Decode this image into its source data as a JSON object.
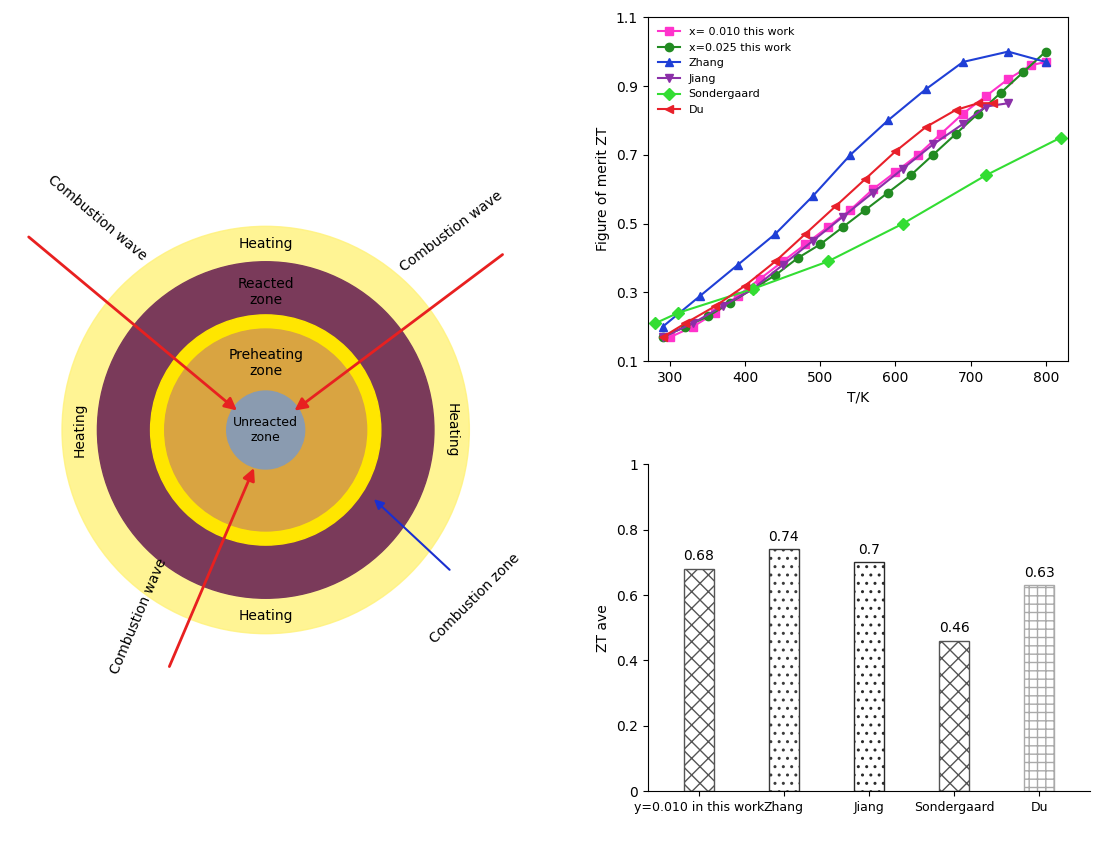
{
  "diagram": {
    "zones": [
      "Reacted zone",
      "Preheating zone",
      "Unreacted zone"
    ],
    "heating": [
      "Heating",
      "Heating",
      "Heating",
      "Heating"
    ],
    "combustion_wave": [
      "Combustion wave",
      "Combustion wave",
      "Combustion wave"
    ],
    "combustion_zone": "Combustion zone"
  },
  "chart_data": [
    {
      "type": "line",
      "x_label": "T/K",
      "y_label": "Figure of merit ZT",
      "xlim": [
        270,
        830
      ],
      "xticks": [
        300,
        400,
        500,
        600,
        700,
        800
      ],
      "ylim": [
        0.1,
        1.1
      ],
      "yticks": [
        0.1,
        0.3,
        0.5,
        0.7,
        0.9,
        1.1
      ],
      "legend": "upper left",
      "series": [
        {
          "name": "x= 0.010 this work",
          "color": "#ff33cc",
          "marker": "s",
          "x": [
            300,
            330,
            360,
            390,
            420,
            450,
            480,
            510,
            540,
            570,
            600,
            630,
            660,
            690,
            720,
            750,
            780,
            800
          ],
          "values": [
            0.17,
            0.2,
            0.24,
            0.29,
            0.34,
            0.39,
            0.44,
            0.49,
            0.54,
            0.6,
            0.65,
            0.7,
            0.76,
            0.82,
            0.87,
            0.92,
            0.96,
            0.97
          ]
        },
        {
          "name": "x=0.025 this work",
          "color": "#228b22",
          "marker": "o",
          "x": [
            290,
            320,
            350,
            380,
            410,
            440,
            470,
            500,
            530,
            560,
            590,
            620,
            650,
            680,
            710,
            740,
            770,
            800
          ],
          "values": [
            0.17,
            0.2,
            0.23,
            0.27,
            0.31,
            0.35,
            0.4,
            0.44,
            0.49,
            0.54,
            0.59,
            0.64,
            0.7,
            0.76,
            0.82,
            0.88,
            0.94,
            1.0
          ]
        },
        {
          "name": "Zhang",
          "color": "#1f3fd6",
          "marker": "^",
          "x": [
            290,
            340,
            390,
            440,
            490,
            540,
            590,
            640,
            690,
            750,
            800
          ],
          "values": [
            0.2,
            0.29,
            0.38,
            0.47,
            0.58,
            0.7,
            0.8,
            0.89,
            0.97,
            1.0,
            0.97
          ]
        },
        {
          "name": "Jiang",
          "color": "#8b2fa8",
          "marker": "v",
          "x": [
            290,
            330,
            370,
            410,
            450,
            490,
            530,
            570,
            610,
            650,
            690,
            720,
            750
          ],
          "values": [
            0.17,
            0.21,
            0.26,
            0.31,
            0.38,
            0.45,
            0.52,
            0.59,
            0.66,
            0.73,
            0.79,
            0.84,
            0.85
          ]
        },
        {
          "name": "Sondergaard",
          "color": "#33dd33",
          "marker": "D",
          "x": [
            280,
            310,
            410,
            510,
            610,
            720,
            820
          ],
          "values": [
            0.21,
            0.24,
            0.31,
            0.39,
            0.5,
            0.64,
            0.75
          ]
        },
        {
          "name": "Du",
          "color": "#e8202a",
          "marker": "<",
          "x": [
            290,
            320,
            360,
            400,
            440,
            480,
            520,
            560,
            600,
            640,
            680,
            710,
            730
          ],
          "values": [
            0.17,
            0.21,
            0.26,
            0.32,
            0.39,
            0.47,
            0.55,
            0.63,
            0.71,
            0.78,
            0.83,
            0.85,
            0.85
          ]
        }
      ]
    },
    {
      "type": "bar",
      "y_label": "ZT ave",
      "categories": [
        "y=0.010 in this work",
        "Zhang",
        "Jiang",
        "Sondergaard",
        "Du"
      ],
      "values": [
        0.68,
        0.74,
        0.7,
        0.46,
        0.63
      ],
      "colors": [
        "#555555",
        "#3a3a3a",
        "#2a2a2a",
        "#555555",
        "#aaaaaa"
      ],
      "ylim": [
        0,
        1
      ],
      "yticks": [
        0,
        0.2,
        0.4,
        0.6,
        0.8,
        1
      ],
      "data_labels": true
    }
  ]
}
